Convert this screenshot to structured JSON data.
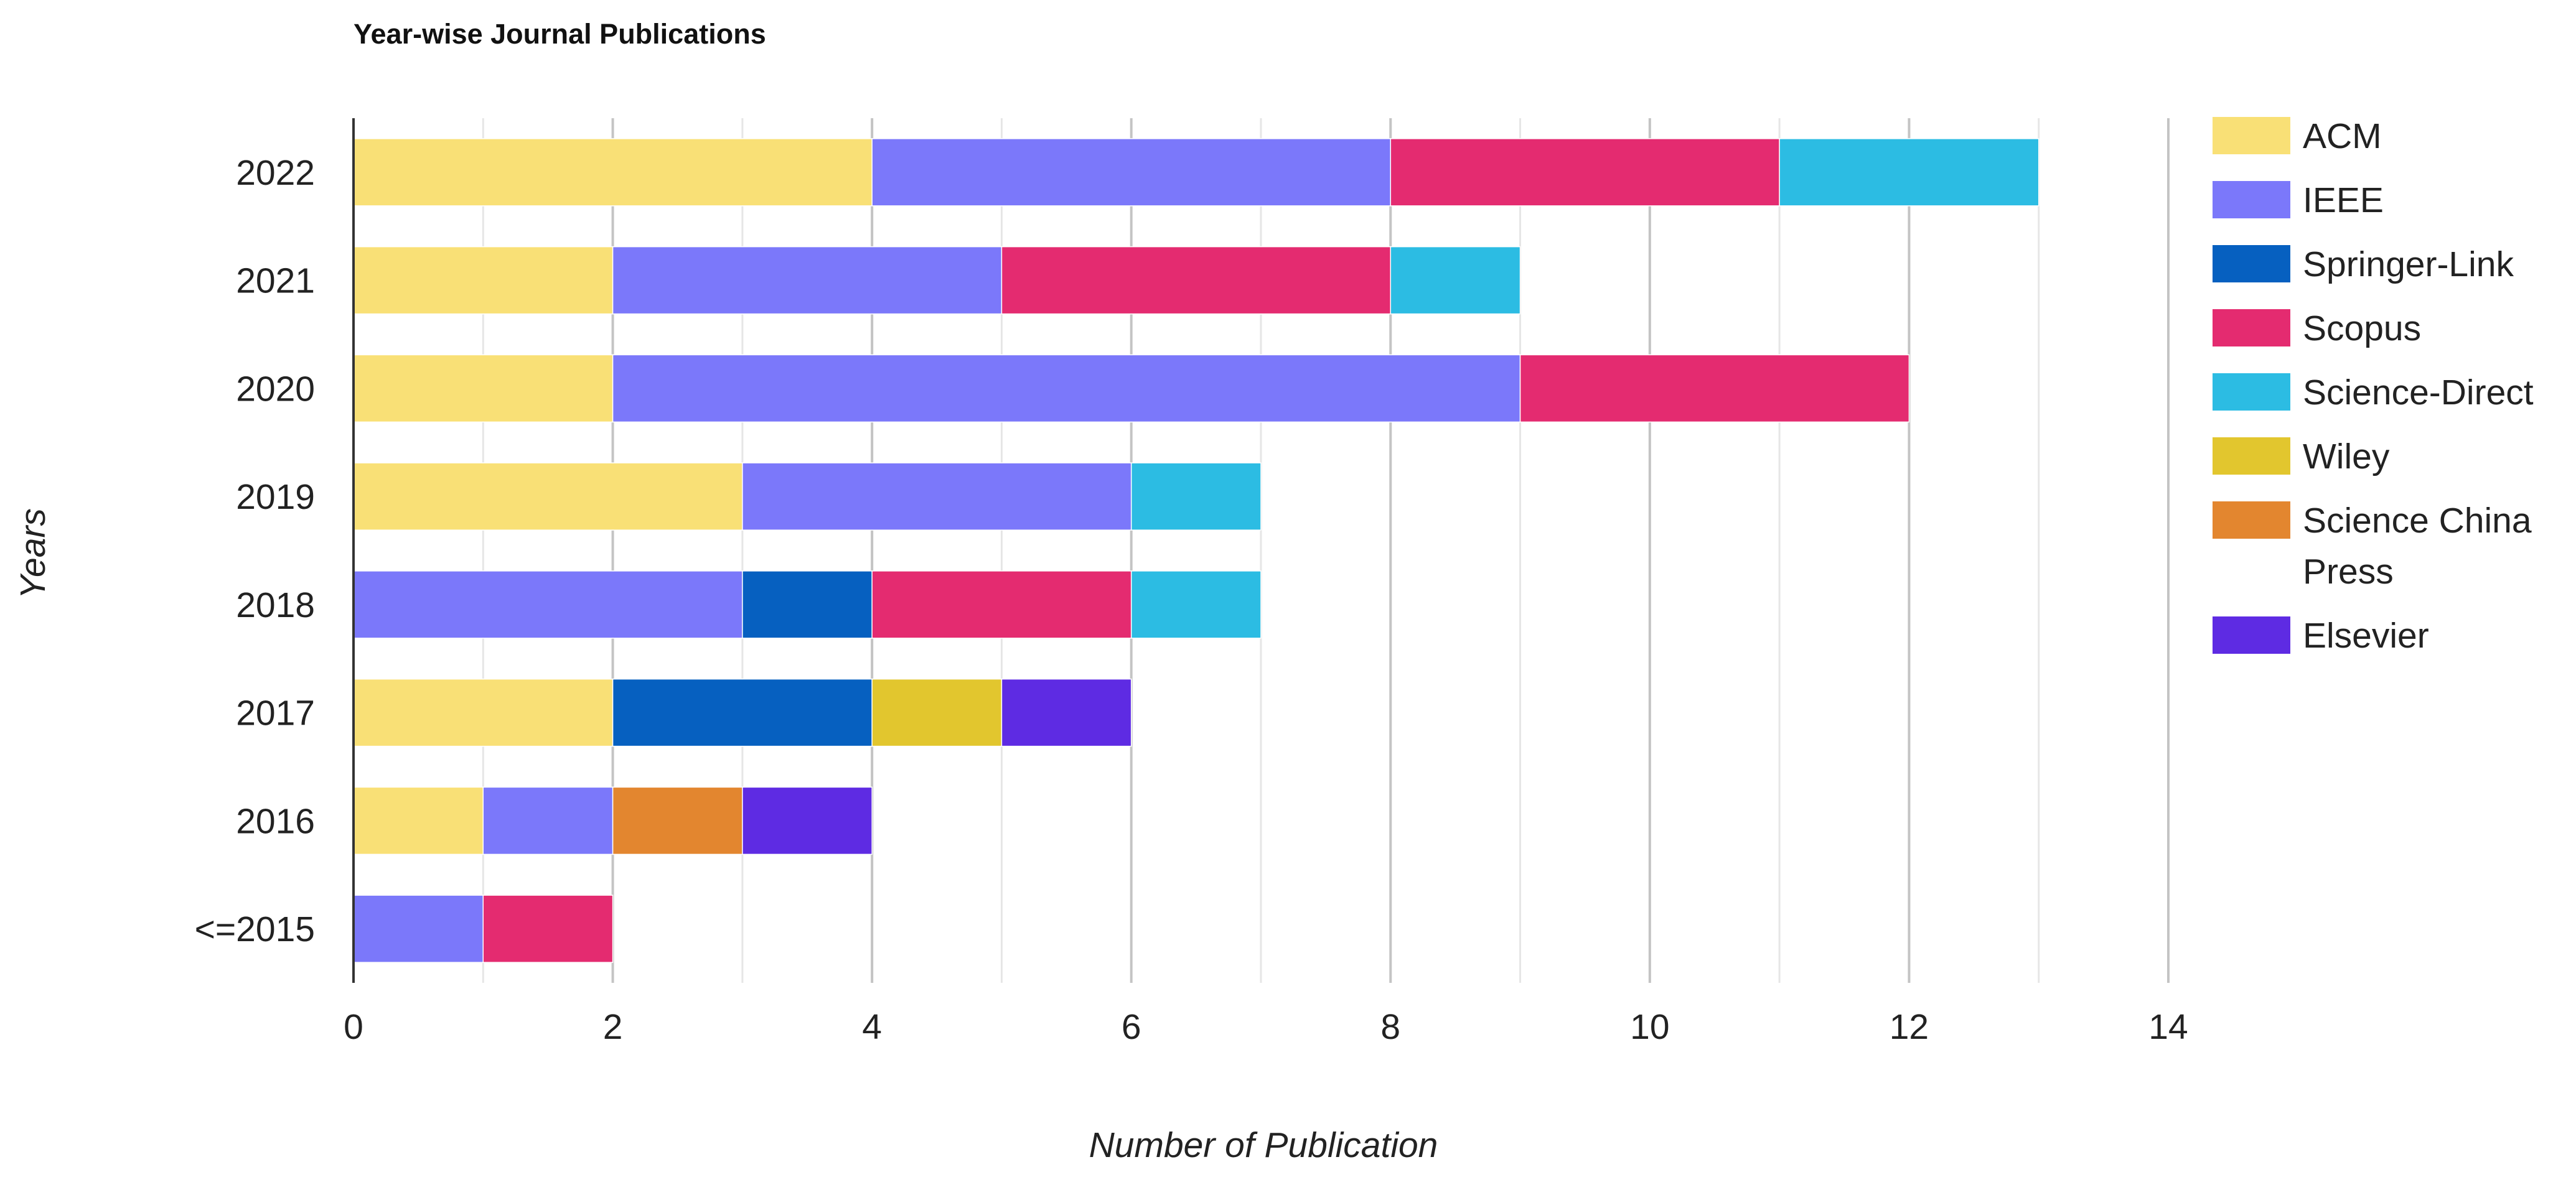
{
  "chart_data": {
    "type": "bar",
    "orientation": "horizontal",
    "stacked": true,
    "title": "Year-wise Journal Publications",
    "xlabel": "Number of Publication",
    "ylabel": "Years",
    "xlim": [
      0,
      14
    ],
    "x_ticks": [
      "0",
      "2",
      "4",
      "6",
      "8",
      "10",
      "12",
      "14"
    ],
    "categories": [
      "2022",
      "2021",
      "2020",
      "2019",
      "2018",
      "2017",
      "2016",
      "<=2015"
    ],
    "grid": true,
    "legend_position": "right",
    "series": [
      {
        "name": "ACM",
        "color": "#F9E076",
        "values": [
          4,
          2,
          2,
          3,
          0,
          2,
          1,
          0
        ]
      },
      {
        "name": "IEEE",
        "color": "#7B78FA",
        "values": [
          4,
          3,
          7,
          3,
          3,
          0,
          1,
          1
        ]
      },
      {
        "name": "Springer-Link",
        "color": "#0660C0",
        "values": [
          0,
          0,
          0,
          0,
          1,
          2,
          0,
          0
        ]
      },
      {
        "name": "Scopus",
        "color": "#E42B70",
        "values": [
          3,
          3,
          3,
          0,
          2,
          0,
          0,
          1
        ]
      },
      {
        "name": "Science-Direct",
        "color": "#2CBCE3",
        "values": [
          2,
          1,
          0,
          1,
          1,
          0,
          0,
          0
        ]
      },
      {
        "name": "Wiley",
        "color": "#E2C62E",
        "values": [
          0,
          0,
          0,
          0,
          0,
          1,
          0,
          0
        ]
      },
      {
        "name": "Science China Press",
        "color": "#E3862F",
        "values": [
          0,
          0,
          0,
          0,
          0,
          0,
          1,
          0
        ]
      },
      {
        "name": "Elsevier",
        "color": "#5E2BE3",
        "values": [
          0,
          0,
          0,
          0,
          0,
          1,
          1,
          0
        ]
      }
    ]
  }
}
